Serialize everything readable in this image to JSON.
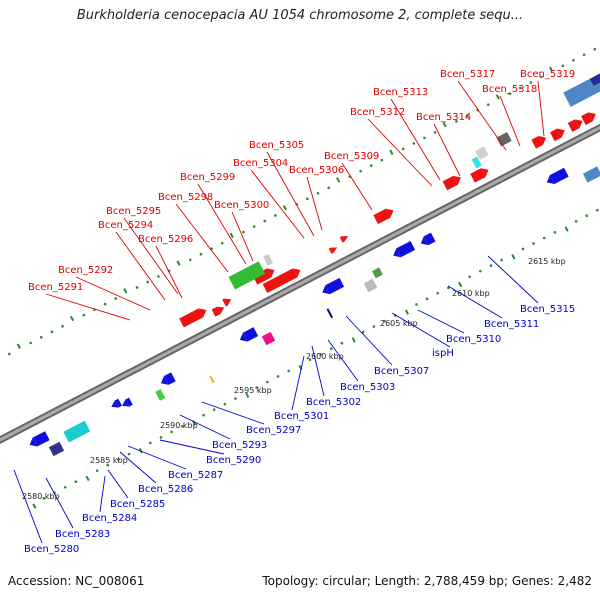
{
  "title": "Burkholderia cenocepacia AU 1054 chromosome 2, complete sequ...",
  "footer": {
    "accession": "Accession: NC_008061",
    "topology": "Topology: circular; Length: 2,788,459 bp; Genes: 2,482"
  },
  "colors": {
    "upper_label": "#e00000",
    "lower_label": "#0000cc",
    "backbone": "#888888",
    "tick": "#2a8a2a"
  },
  "kbp_labels": [
    "2580 kbp",
    "2585 kbp",
    "2590 kbp",
    "2595 kbp",
    "2600 kbp",
    "2605 kbp",
    "2610 kbp",
    "2615 kbp"
  ],
  "upper_labels": [
    "Bcen_5291",
    "Bcen_5292",
    "Bcen_5294",
    "Bcen_5295",
    "Bcen_5296",
    "Bcen_5298",
    "Bcen_5299",
    "Bcen_5300",
    "Bcen_5304",
    "Bcen_5305",
    "Bcen_5306",
    "Bcen_5309",
    "Bcen_5312",
    "Bcen_5313",
    "Bcen_5314",
    "Bcen_5317",
    "Bcen_5318",
    "Bcen_5319"
  ],
  "lower_labels": [
    "Bcen_5280",
    "Bcen_5283",
    "Bcen_5284",
    "Bcen_5285",
    "Bcen_5286",
    "Bcen_5287",
    "Bcen_5290",
    "Bcen_5293",
    "Bcen_5297",
    "Bcen_5301",
    "Bcen_5302",
    "Bcen_5303",
    "Bcen_5307",
    "ispH",
    "Bcen_5310",
    "Bcen_5311",
    "Bcen_5315"
  ]
}
